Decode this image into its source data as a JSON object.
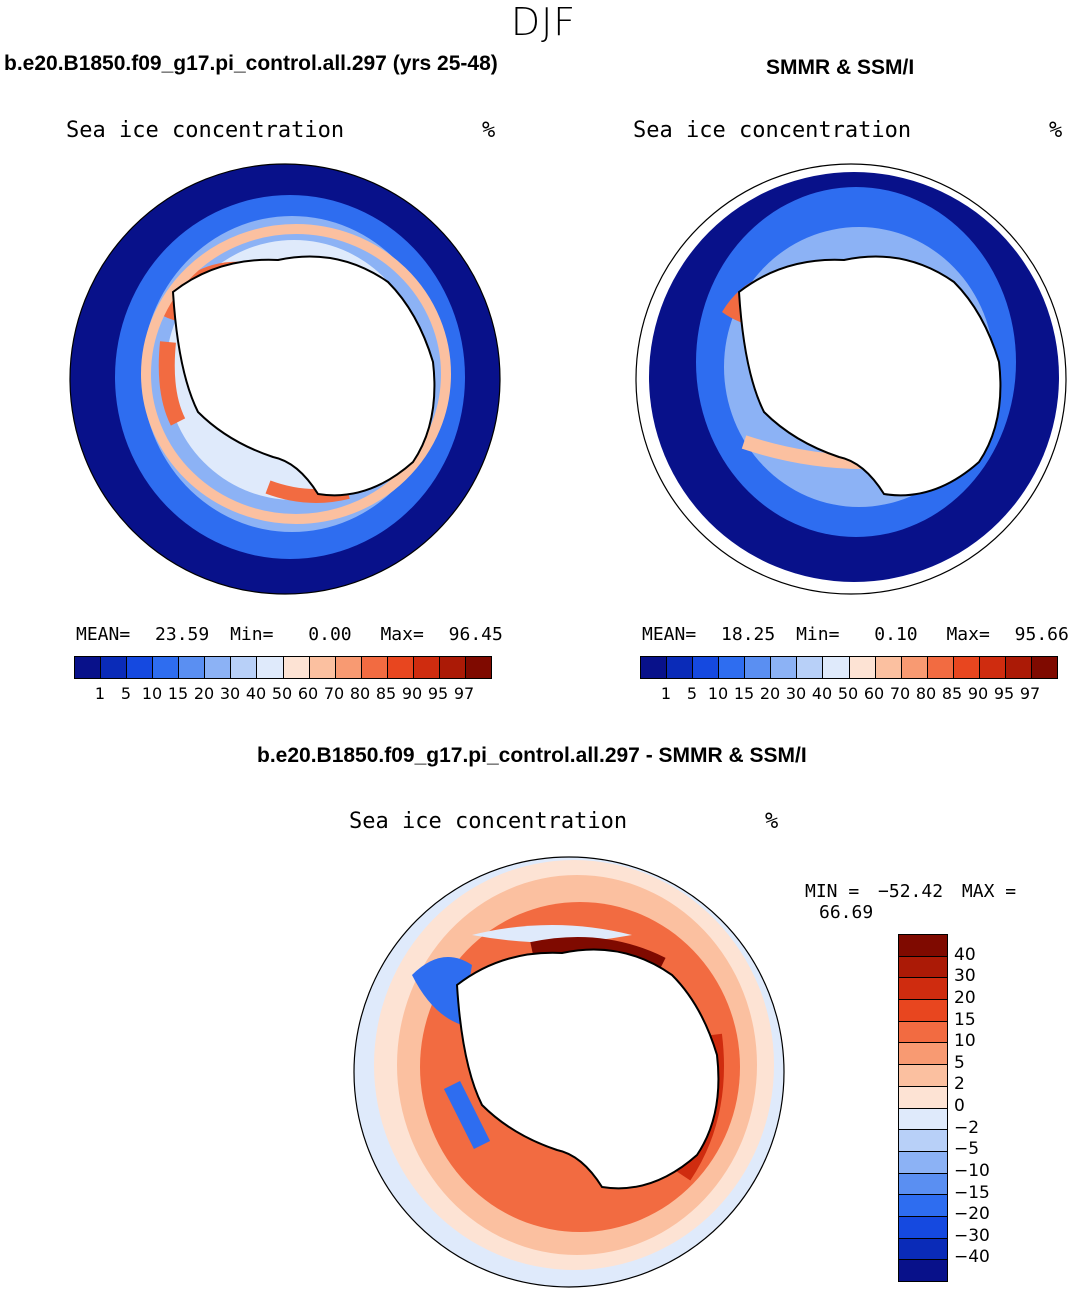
{
  "figure": {
    "season": "DJF",
    "model_title": "b.e20.B1850.f09_g17.pi_control.all.297 (yrs 25-48)",
    "obs_title": "SMMR & SSM/I",
    "diff_title": "b.e20.B1850.f09_g17.pi_control.all.297 - SMMR & SSM/I"
  },
  "panels": {
    "model": {
      "variable": "Sea ice concentration",
      "units": "%",
      "mean_label": "MEAN=",
      "mean": "23.59",
      "min_label": "Min=",
      "min": "0.00",
      "max_label": "Max=",
      "max": "96.45"
    },
    "obs": {
      "variable": "Sea ice concentration",
      "units": "%",
      "mean_label": "MEAN=",
      "mean": "18.25",
      "min_label": "Min=",
      "min": "0.10",
      "max_label": "Max=",
      "max": "95.66"
    },
    "diff": {
      "variable": "Sea ice concentration",
      "units": "%",
      "min_label": "MIN =",
      "min": "−52.42",
      "max_label": "MAX =",
      "max": "66.69"
    }
  },
  "colorbar_abs": {
    "ticks": [
      "1",
      "5",
      "10",
      "15",
      "20",
      "30",
      "40",
      "50",
      "60",
      "70",
      "80",
      "85",
      "90",
      "95",
      "97"
    ],
    "colors": [
      "#08118a",
      "#0a2bb8",
      "#1549e0",
      "#2e6df0",
      "#5a8ff2",
      "#8cb2f5",
      "#b8d0f8",
      "#dfeafb",
      "#fde3d4",
      "#fbc0a0",
      "#f89a72",
      "#f26b41",
      "#e8461f",
      "#cf2c0f",
      "#ab1a06",
      "#7f0a00"
    ]
  },
  "colorbar_diff": {
    "ticks": [
      "40",
      "30",
      "20",
      "15",
      "10",
      "5",
      "2",
      "0",
      "−2",
      "−5",
      "−10",
      "−15",
      "−20",
      "−30",
      "−40"
    ],
    "colors": [
      "#7f0a00",
      "#ab1a06",
      "#cf2c0f",
      "#e8461f",
      "#f26b41",
      "#f89a72",
      "#fbc0a0",
      "#fde3d4",
      "#dfeafb",
      "#b8d0f8",
      "#8cb2f5",
      "#5a8ff2",
      "#2e6df0",
      "#1549e0",
      "#0a2bb8",
      "#08118a"
    ]
  },
  "map_colors": {
    "deep_blue": "#08118a",
    "mid_blue": "#2e6df0",
    "light_blue": "#8cb2f5",
    "pale_blue": "#dfeafb",
    "pale_red": "#fde3d4",
    "light_red": "#fbc0a0",
    "mid_red": "#f26b41",
    "deep_red": "#cf2c0f",
    "dark_red": "#7f0a00"
  }
}
